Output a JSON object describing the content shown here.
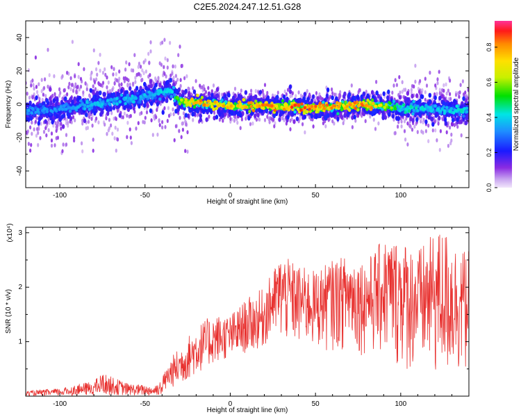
{
  "title": "C2E5.2024.247.12.51.G28",
  "colorbar": {
    "label": "Normalized spectral amplitude",
    "ticks": [
      0.0,
      0.2,
      0.4,
      0.6,
      0.8
    ],
    "tick_labels": [
      "0.0",
      "0.2",
      "0.4",
      "0.6",
      "0.8"
    ]
  },
  "chart_data": [
    {
      "type": "heatmap",
      "title": "C2E5.2024.247.12.51.G28",
      "xlabel": "Height of straight line (km)",
      "ylabel": "Frequency (Hz)",
      "xlim": [
        -120,
        140
      ],
      "ylim": [
        -50,
        50
      ],
      "xticks": [
        -100,
        -50,
        0,
        50,
        100
      ],
      "yticks": [
        -40,
        -20,
        0,
        20,
        40
      ],
      "colorbar_label": "Normalized spectral amplitude",
      "colorbar_range": [
        0,
        0.95
      ],
      "ridge": {
        "description_points_x": [
          -120,
          -100,
          -80,
          -60,
          -45,
          -35,
          -30,
          -20,
          0,
          20,
          40,
          60,
          80,
          100,
          120,
          135
        ],
        "center_freq_hz": [
          -4,
          -3,
          0,
          3,
          6,
          8,
          2,
          1,
          -1,
          -1,
          -2,
          -2,
          0,
          -2,
          -3,
          -4
        ],
        "peak_amplitude": [
          0.35,
          0.35,
          0.4,
          0.4,
          0.4,
          0.45,
          0.6,
          0.85,
          0.8,
          0.85,
          0.9,
          0.85,
          0.9,
          0.5,
          0.4,
          0.45
        ]
      }
    },
    {
      "type": "line",
      "xlabel": "Height of straight line (km)",
      "ylabel": "SNR (10 * v/v)",
      "y_multiplier": "(x10⁴)",
      "xlim": [
        -120,
        140
      ],
      "ylim": [
        0,
        3.1
      ],
      "xticks": [
        -100,
        -50,
        0,
        50,
        100
      ],
      "yticks": [
        1,
        2,
        3
      ],
      "series": [
        {
          "color": "#e8312f",
          "envelope_x": [
            -120,
            -100,
            -80,
            -75,
            -60,
            -45,
            -40,
            -35,
            -30,
            -20,
            -10,
            0,
            10,
            20,
            30,
            40,
            50,
            60,
            70,
            80,
            90,
            100,
            110,
            120,
            125,
            135
          ],
          "envelope_max": [
            0.1,
            0.15,
            0.3,
            0.45,
            0.25,
            0.2,
            0.35,
            0.7,
            0.9,
            1.3,
            1.5,
            1.5,
            1.8,
            2.0,
            2.6,
            2.4,
            2.3,
            2.5,
            2.6,
            2.5,
            2.9,
            2.9,
            2.7,
            3.0,
            3.1,
            2.7
          ],
          "envelope_min": [
            0.0,
            0.0,
            0.0,
            0.05,
            0.0,
            0.0,
            0.05,
            0.15,
            0.2,
            0.4,
            0.6,
            0.7,
            0.8,
            0.9,
            0.9,
            0.8,
            0.8,
            0.8,
            0.8,
            0.7,
            0.6,
            0.4,
            0.3,
            0.2,
            0.1,
            0.3
          ]
        }
      ]
    }
  ]
}
